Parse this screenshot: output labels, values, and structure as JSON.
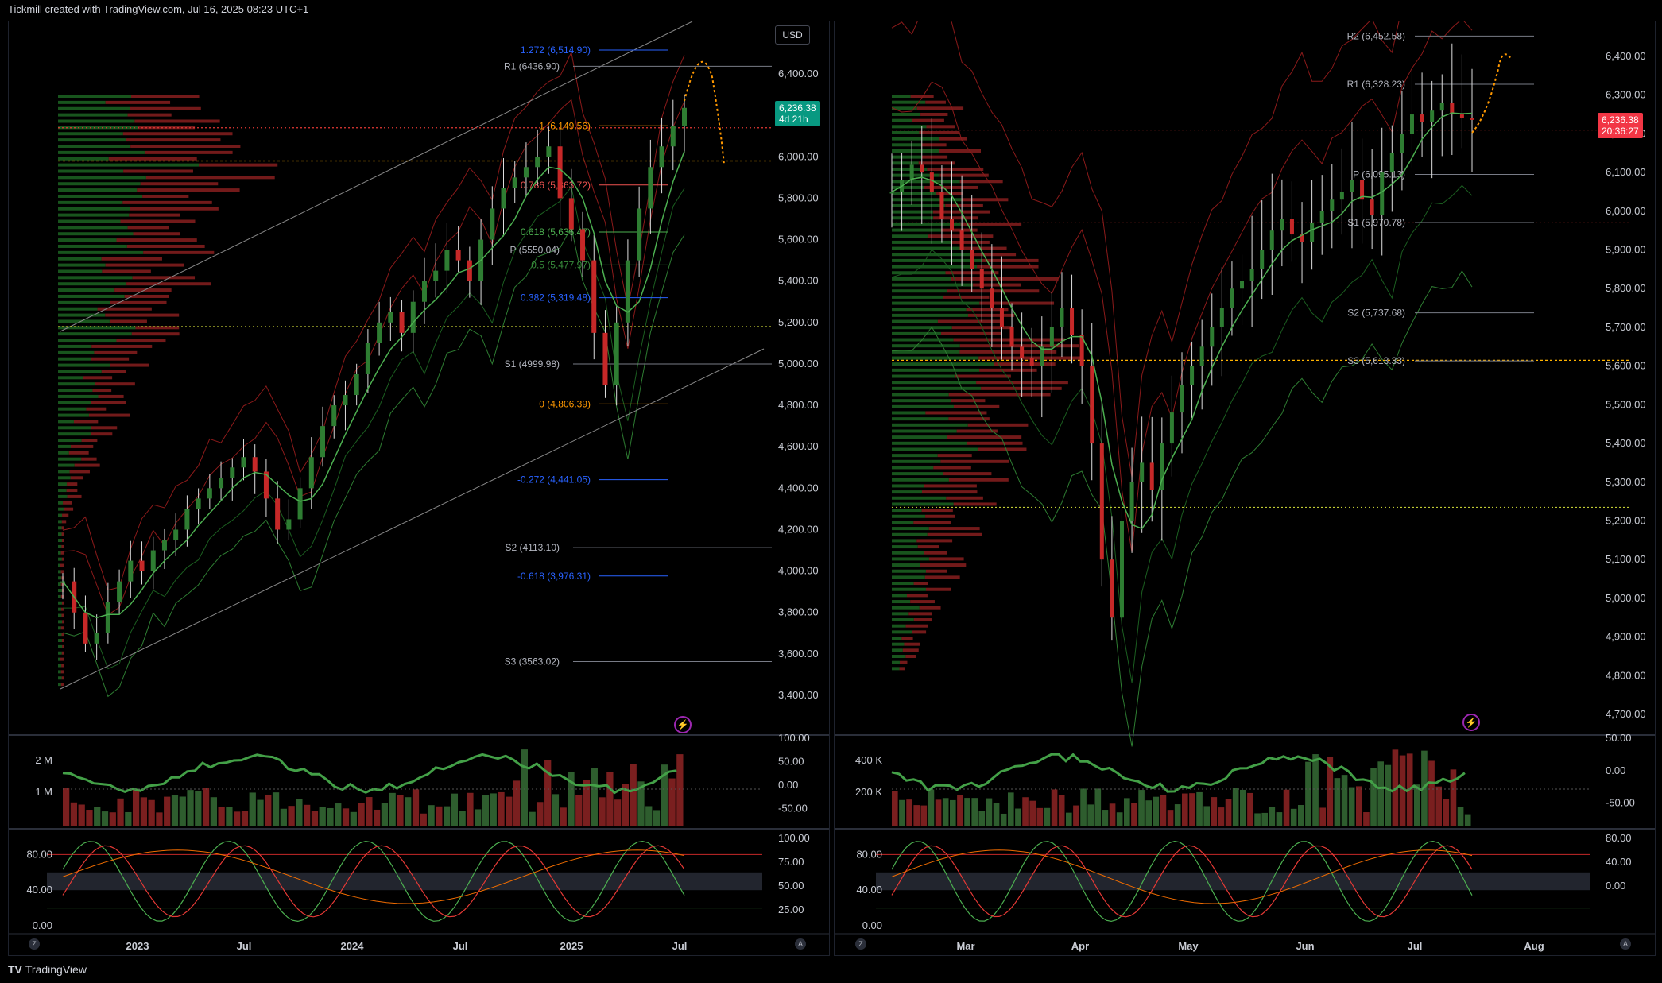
{
  "header": {
    "title": "Tickmill created with TradingView.com, Jul 16, 2025 08:23 UTC+1"
  },
  "footer": {
    "brand": "TradingView",
    "logo": "TV"
  },
  "currency_button": "USD",
  "colors": {
    "up": "#26a69a",
    "down": "#ef5350",
    "green": "#2e7d32",
    "red": "#c62828",
    "orange": "#ff9800",
    "blue": "#2962ff",
    "grid": "#1e222d"
  },
  "left_chart": {
    "price_tag": {
      "value": "6,236.38",
      "countdown": "4d 21h"
    },
    "y_axis": [
      "6,400.00",
      "6,200.00",
      "6,000.00",
      "5,800.00",
      "5,600.00",
      "5,400.00",
      "5,200.00",
      "5,000.00",
      "4,800.00",
      "4,600.00",
      "4,400.00",
      "4,200.00",
      "4,000.00",
      "3,800.00",
      "3,600.00",
      "3,400.00"
    ],
    "x_axis": [
      "2023",
      "Jul",
      "2024",
      "Jul",
      "2025",
      "Jul"
    ],
    "fib_levels": [
      {
        "label": "1.272 (6,514.90)",
        "price": 6514.9,
        "color": "#2962ff"
      },
      {
        "label": "1 (6,149.56)",
        "price": 6149.56,
        "color": "#ff9800"
      },
      {
        "label": "0.786 (5,863.72)",
        "price": 5863.72,
        "color": "#ef5350"
      },
      {
        "label": "0.618 (5,636.47)",
        "price": 5636.47,
        "color": "#4caf50"
      },
      {
        "label": "0.5 (5,477.97)",
        "price": 5477.97,
        "color": "#388e3c"
      },
      {
        "label": "0.382 (5,319.48)",
        "price": 5319.48,
        "color": "#2962ff"
      },
      {
        "label": "0 (4,806.39)",
        "price": 4806.39,
        "color": "#ff9800"
      },
      {
        "label": "-0.272 (4,441.05)",
        "price": 4441.05,
        "color": "#2962ff"
      },
      {
        "label": "-0.618 (3,976.31)",
        "price": 3976.31,
        "color": "#2962ff"
      }
    ],
    "pivots": [
      {
        "label": "R1 (6436.90)",
        "price": 6436.9
      },
      {
        "label": "P (5550.04)",
        "price": 5550.04
      },
      {
        "label": "S1 (4999.98)",
        "price": 4999.98
      },
      {
        "label": "S2 (4113.10)",
        "price": 4113.1
      },
      {
        "label": "S3 (3563.02)",
        "price": 3563.02
      }
    ],
    "volume_axis": [
      "2 M",
      "1 M"
    ],
    "osc1_axis": [
      "100.00",
      "50.00",
      "0.00",
      "-50.00"
    ],
    "osc2_axis_left": [
      "80.00",
      "40.00",
      "0.00"
    ],
    "osc2_axis_right": [
      "100.00",
      "75.00",
      "50.00",
      "25.00"
    ]
  },
  "right_chart": {
    "price_tag": {
      "value": "6,236.38",
      "countdown": "20:36:27"
    },
    "y_axis": [
      "6,400.00",
      "6,300.00",
      "6,200.00",
      "6,100.00",
      "6,000.00",
      "5,900.00",
      "5,800.00",
      "5,700.00",
      "5,600.00",
      "5,500.00",
      "5,400.00",
      "5,300.00",
      "5,200.00",
      "5,100.00",
      "5,000.00",
      "4,900.00",
      "4,800.00",
      "4,700.00"
    ],
    "x_axis": [
      "Mar",
      "Apr",
      "May",
      "Jun",
      "Jul",
      "Aug"
    ],
    "pivots": [
      {
        "label": "R2 (6,452.58)",
        "price": 6452.58
      },
      {
        "label": "R1 (6,328.23)",
        "price": 6328.23
      },
      {
        "label": "P (6,095.13)",
        "price": 6095.13
      },
      {
        "label": "S1 (5,970.78)",
        "price": 5970.78
      },
      {
        "label": "S2 (5,737.68)",
        "price": 5737.68
      },
      {
        "label": "S3 (5,613.33)",
        "price": 5613.33
      }
    ],
    "volume_axis": [
      "400 K",
      "200 K"
    ],
    "osc1_axis": [
      "50.00",
      "0.00",
      "-50.00"
    ],
    "osc2_axis_left": [
      "80.00",
      "40.00",
      "0.00"
    ],
    "osc2_axis_right": [
      "80.00",
      "40.00",
      "0.00"
    ]
  },
  "chart_data": [
    {
      "type": "candlestick",
      "title": "",
      "timeframe": "weekly",
      "x_range": [
        "2022-11",
        "2025-07"
      ],
      "ylim": [
        3300,
        6560
      ],
      "close_series": [
        3950,
        3800,
        3650,
        3700,
        3850,
        3950,
        4050,
        4000,
        4100,
        4150,
        4200,
        4300,
        4350,
        4400,
        4450,
        4500,
        4550,
        4480,
        4350,
        4200,
        4250,
        4400,
        4550,
        4700,
        4800,
        4850,
        4950,
        5100,
        5200,
        5250,
        5150,
        5300,
        5400,
        5450,
        5550,
        5500,
        5400,
        5600,
        5750,
        5850,
        5900,
        5950,
        6000,
        6050,
        5800,
        5650,
        5500,
        5150,
        4900,
        5200,
        5500,
        5750,
        5950,
        6050,
        6150,
        6236
      ]
    },
    {
      "type": "candlestick",
      "title": "",
      "timeframe": "daily",
      "x_range": [
        "2025-02",
        "2025-07"
      ],
      "ylim": [
        4680,
        6480
      ],
      "close_series": [
        6050,
        6080,
        6120,
        6100,
        6050,
        5980,
        5950,
        5900,
        5850,
        5800,
        5750,
        5700,
        5650,
        5620,
        5600,
        5650,
        5700,
        5750,
        5680,
        5600,
        5400,
        5100,
        4950,
        5200,
        5300,
        5350,
        5280,
        5400,
        5480,
        5550,
        5600,
        5650,
        5700,
        5750,
        5800,
        5820,
        5850,
        5900,
        5950,
        5980,
        5940,
        5920,
        5970,
        6000,
        6030,
        6050,
        6080,
        6030,
        5990,
        6100,
        6150,
        6200,
        6250,
        6230,
        6260,
        6280,
        6250,
        6240,
        6236
      ]
    }
  ]
}
